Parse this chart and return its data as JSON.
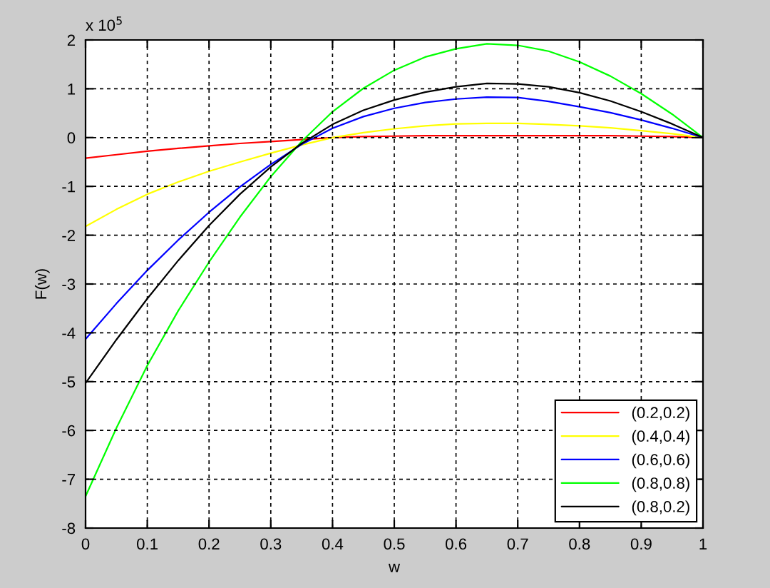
{
  "chart_data": {
    "type": "line",
    "xlabel": "w",
    "ylabel": "F(w)",
    "annotations": [
      "x 10$^{5}$"
    ],
    "x": [
      0,
      0.05,
      0.1,
      0.15,
      0.2,
      0.25,
      0.3,
      0.35,
      0.4,
      0.45,
      0.5,
      0.55,
      0.6,
      0.65,
      0.7,
      0.75,
      0.8,
      0.85,
      0.9,
      0.95,
      1
    ],
    "series": [
      {
        "name": "(0.2,0.2)",
        "color": "#ff0000",
        "values": [
          -0.42,
          -0.35,
          -0.28,
          -0.22,
          -0.17,
          -0.12,
          -0.08,
          -0.04,
          0.0,
          0.02,
          0.03,
          0.04,
          0.04,
          0.04,
          0.04,
          0.04,
          0.04,
          0.04,
          0.03,
          0.02,
          0
        ]
      },
      {
        "name": "(0.4,0.4)",
        "color": "#ffff00",
        "values": [
          -1.82,
          -1.47,
          -1.16,
          -0.91,
          -0.69,
          -0.5,
          -0.32,
          -0.15,
          0.0,
          0.1,
          0.18,
          0.24,
          0.28,
          0.29,
          0.29,
          0.27,
          0.24,
          0.2,
          0.14,
          0.08,
          0
        ]
      },
      {
        "name": "(0.6,0.6)",
        "color": "#0000ff",
        "values": [
          -4.13,
          -3.4,
          -2.72,
          -2.1,
          -1.53,
          -1.01,
          -0.55,
          -0.14,
          0.19,
          0.43,
          0.6,
          0.72,
          0.79,
          0.83,
          0.82,
          0.74,
          0.63,
          0.51,
          0.36,
          0.19,
          0
        ]
      },
      {
        "name": "(0.8,0.8)",
        "color": "#00ff00",
        "values": [
          -7.35,
          -5.95,
          -4.67,
          -3.55,
          -2.55,
          -1.63,
          -0.8,
          -0.08,
          0.53,
          1.01,
          1.38,
          1.65,
          1.82,
          1.92,
          1.89,
          1.77,
          1.55,
          1.26,
          0.9,
          0.48,
          0
        ]
      },
      {
        "name": "(0.8,0.2)",
        "color": "#000000",
        "values": [
          -5.03,
          -4.14,
          -3.3,
          -2.52,
          -1.8,
          -1.16,
          -0.6,
          -0.12,
          0.27,
          0.56,
          0.77,
          0.93,
          1.04,
          1.11,
          1.1,
          1.04,
          0.92,
          0.75,
          0.53,
          0.28,
          0
        ]
      }
    ],
    "xlim": [
      0,
      1
    ],
    "xticks": [
      0,
      0.1,
      0.2,
      0.3,
      0.4,
      0.5,
      0.6,
      0.7,
      0.8,
      0.9,
      1
    ],
    "ylim": [
      -8,
      2
    ],
    "yticks": [
      -8,
      -7,
      -6,
      -5,
      -4,
      -3,
      -2,
      -1,
      0,
      1,
      2
    ],
    "grid": true,
    "legend": "bottom right",
    "marker": "none",
    "line_style": "solid"
  }
}
